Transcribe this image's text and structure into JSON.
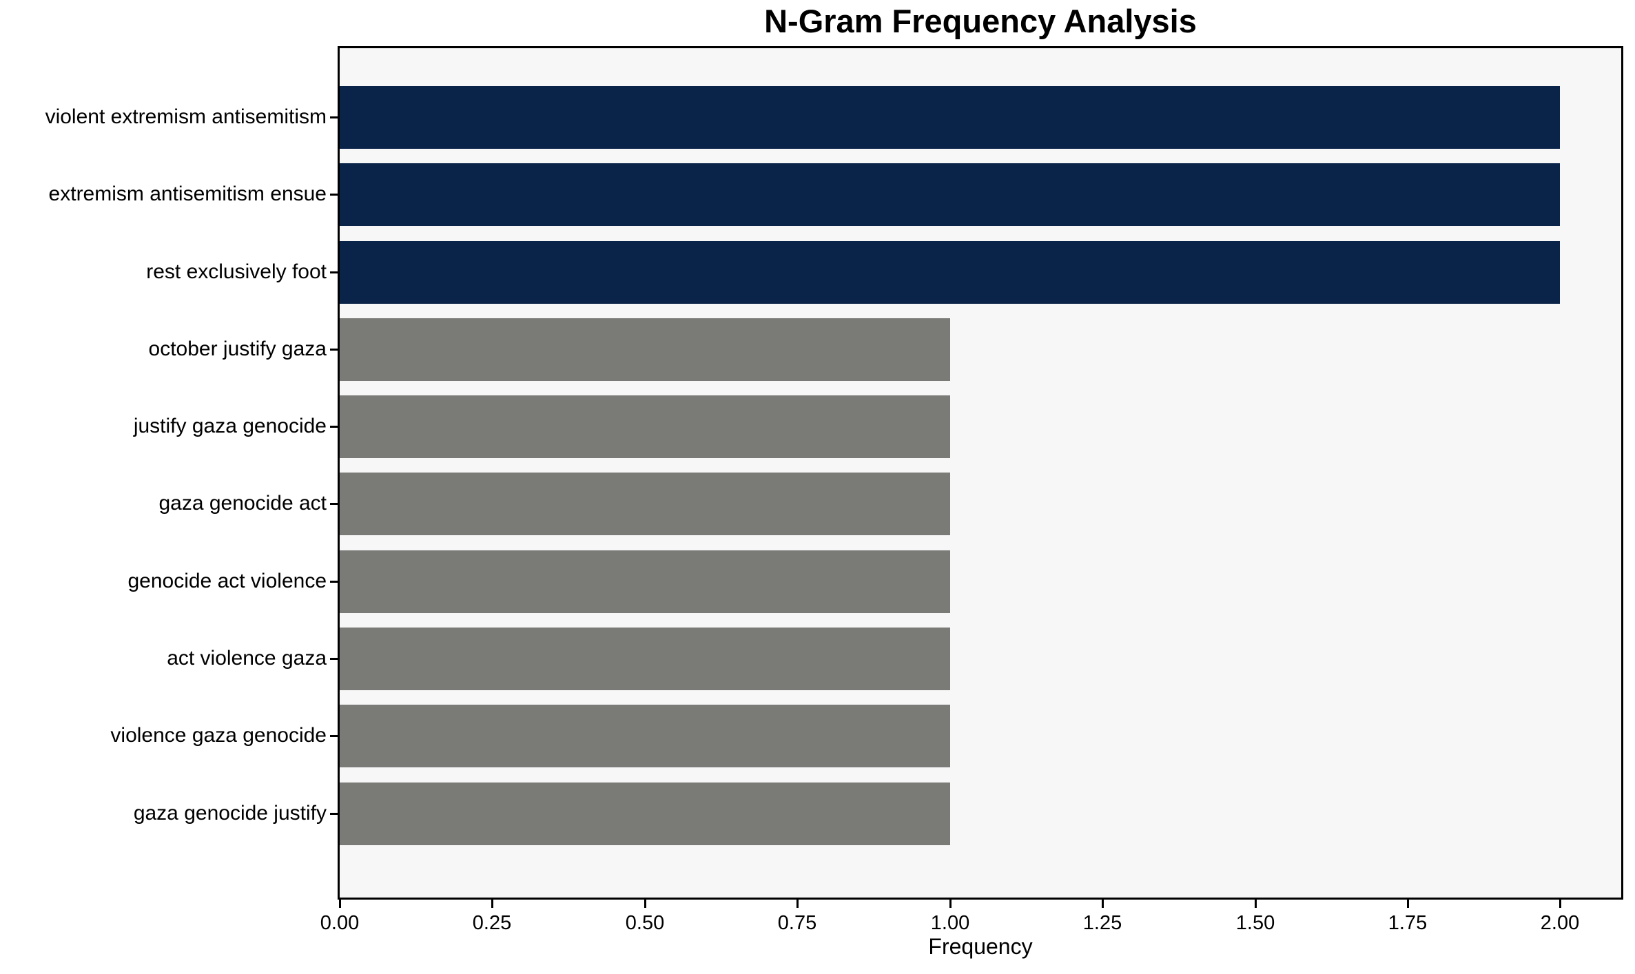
{
  "chart_data": {
    "type": "bar",
    "orientation": "horizontal",
    "title": "N-Gram Frequency Analysis",
    "xlabel": "Frequency",
    "ylabel": "",
    "categories": [
      "violent extremism antisemitism",
      "extremism antisemitism ensue",
      "rest exclusively foot",
      "october justify gaza",
      "justify gaza genocide",
      "gaza genocide act",
      "genocide act violence",
      "act violence gaza",
      "violence gaza genocide",
      "gaza genocide justify"
    ],
    "values": [
      2,
      2,
      2,
      1,
      1,
      1,
      1,
      1,
      1,
      1
    ],
    "bar_colors": [
      "#0a2348",
      "#0a2348",
      "#0a2348",
      "#7a7a77",
      "#7a7a77",
      "#7a7a77",
      "#7a7a77",
      "#7a7a77",
      "#7a7a77",
      "#7a7a77"
    ],
    "palette": {
      "frequency_2": "#0a2348",
      "frequency_1": "#7a7a77",
      "plot_background": "#f7f7f8",
      "figure_background": "#ffffff",
      "spine": "#000000",
      "text": "#000000"
    },
    "xlim": [
      0,
      2.1
    ],
    "xticks": [
      "0.00",
      "0.25",
      "0.50",
      "0.75",
      "1.00",
      "1.25",
      "1.50",
      "1.75",
      "2.00"
    ],
    "xtick_values": [
      0,
      0.25,
      0.5,
      0.75,
      1.0,
      1.25,
      1.5,
      1.75,
      2.0
    ],
    "grid": false,
    "legend": null,
    "bar_height_fraction": 0.8
  }
}
